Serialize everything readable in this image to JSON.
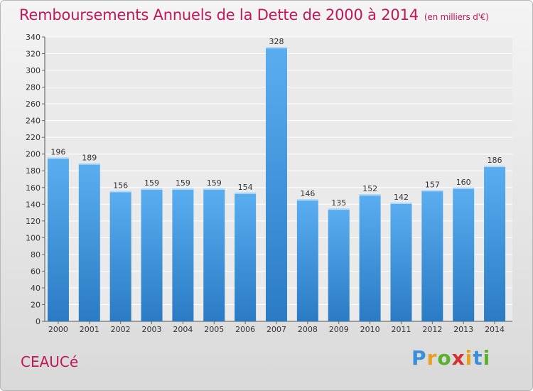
{
  "title": "Remboursements Annuels de la Dette de 2000 à 2014",
  "subtitle": "(en milliers d'€)",
  "commune": "CEAUCé",
  "logo": {
    "letters": [
      "P",
      "r",
      "o",
      "x",
      "i",
      "t",
      "i"
    ],
    "colors": [
      "#3a8fd8",
      "#e8a020",
      "#5cb030",
      "#d83030",
      "#e8a020",
      "#3a8fd8",
      "#5cb030"
    ]
  },
  "chart_data": {
    "type": "bar",
    "title": "Remboursements Annuels de la Dette de 2000 à 2014",
    "subtitle": "(en milliers d'€)",
    "xlabel": "",
    "ylabel": "",
    "categories": [
      "2000",
      "2001",
      "2002",
      "2003",
      "2004",
      "2005",
      "2006",
      "2007",
      "2008",
      "2009",
      "2010",
      "2011",
      "2012",
      "2013",
      "2014"
    ],
    "values": [
      196,
      189,
      156,
      159,
      159,
      159,
      154,
      328,
      146,
      135,
      152,
      142,
      157,
      160,
      186
    ],
    "ylim": [
      0,
      340
    ],
    "yticks": [
      0,
      20,
      40,
      60,
      80,
      100,
      120,
      140,
      160,
      180,
      200,
      220,
      240,
      260,
      280,
      300,
      320,
      340
    ],
    "grid": true,
    "bar_color": "#3d8fd6"
  }
}
